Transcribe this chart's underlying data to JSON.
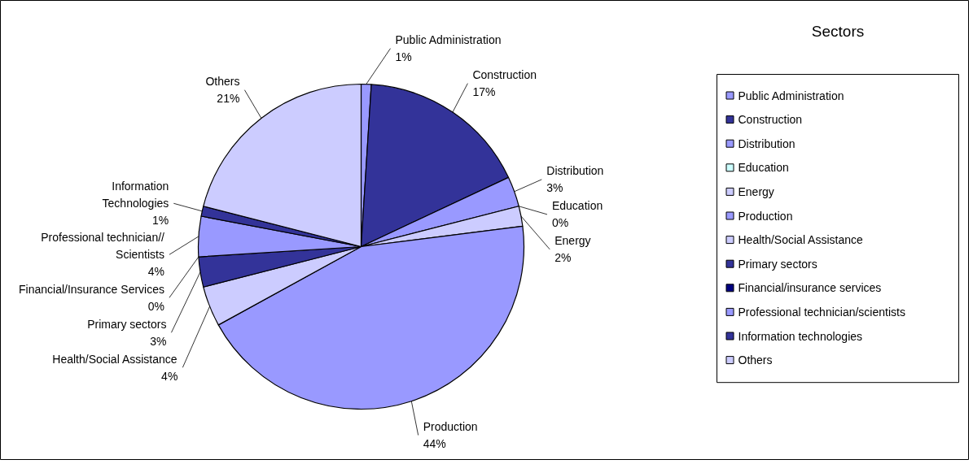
{
  "chart_data": {
    "type": "pie",
    "legend_title": "Sectors",
    "categories": [
      "Public Administration",
      "Construction",
      "Distribution",
      "Education",
      "Energy",
      "Production",
      "Health/Social Assistance",
      "Primary sectors",
      "Financial/insurance services",
      "Professional technician/scientists",
      "Information technologies",
      "Others"
    ],
    "values": [
      1,
      17,
      3,
      0,
      2,
      44,
      4,
      3,
      0,
      4,
      1,
      21
    ],
    "colors": [
      "#9999ff",
      "#333399",
      "#9999ff",
      "#ccffff",
      "#ccccff",
      "#9999ff",
      "#ccccff",
      "#333399",
      "#000080",
      "#9999ff",
      "#333399",
      "#ccccff"
    ],
    "value_labels": [
      "Public Administration\n1%",
      "Construction\n17%",
      "Distribution\n3%",
      "Education\n0%",
      "Energy\n2%",
      "Production\n44%",
      "Health/Social Assistance\n4%",
      "Primary sectors\n3%",
      "Financial/Insurance Services\n0%",
      "Professional technician//\nScientists\n4%",
      "Information\nTechnologies\n1%",
      "Others\n21%"
    ],
    "legend": "right"
  }
}
